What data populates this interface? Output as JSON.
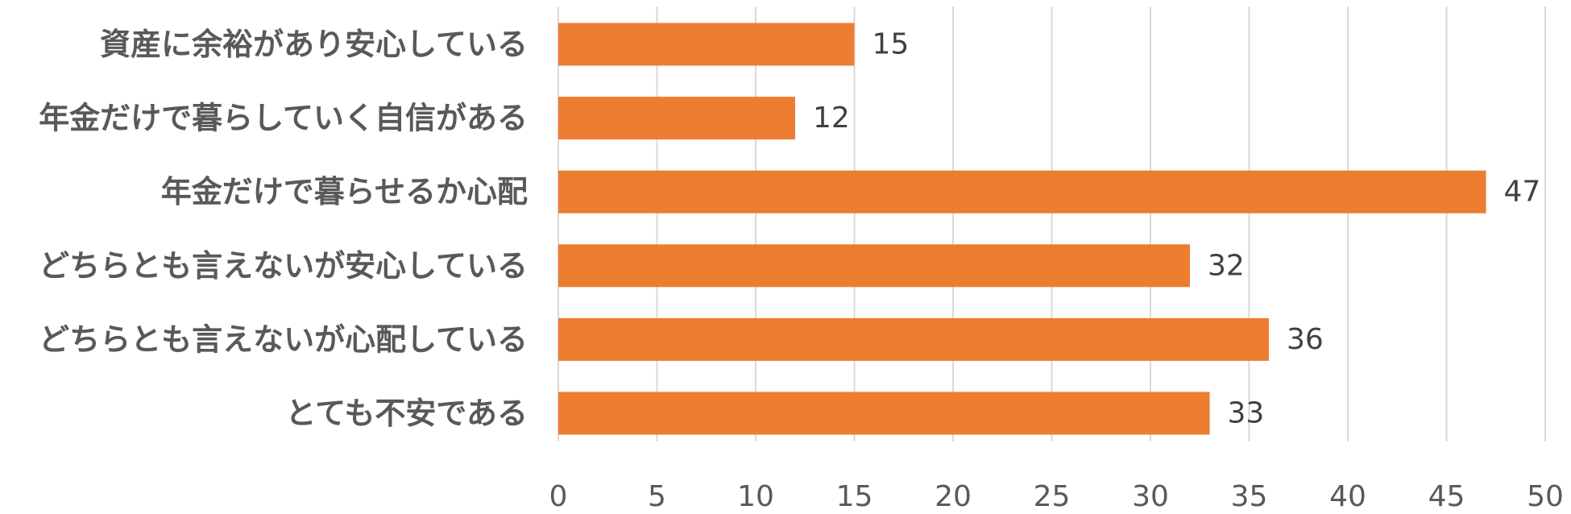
{
  "chart_data": {
    "type": "bar",
    "orientation": "horizontal",
    "categories": [
      "資産に余裕があり安心している",
      "年金だけで暮らしていく自信がある",
      "年金だけで暮らせるか心配",
      "どちらとも言えないが安心している",
      "どちらとも言えないが心配している",
      "とても不安である"
    ],
    "values": [
      15,
      12,
      47,
      32,
      36,
      33
    ],
    "xlim": [
      0,
      50
    ],
    "xticks": [
      0,
      5,
      10,
      15,
      20,
      25,
      30,
      35,
      40,
      45,
      50
    ],
    "grid": true,
    "data_labels": true,
    "bar_color": "#ED7D31",
    "title": "",
    "xlabel": "",
    "ylabel": ""
  }
}
